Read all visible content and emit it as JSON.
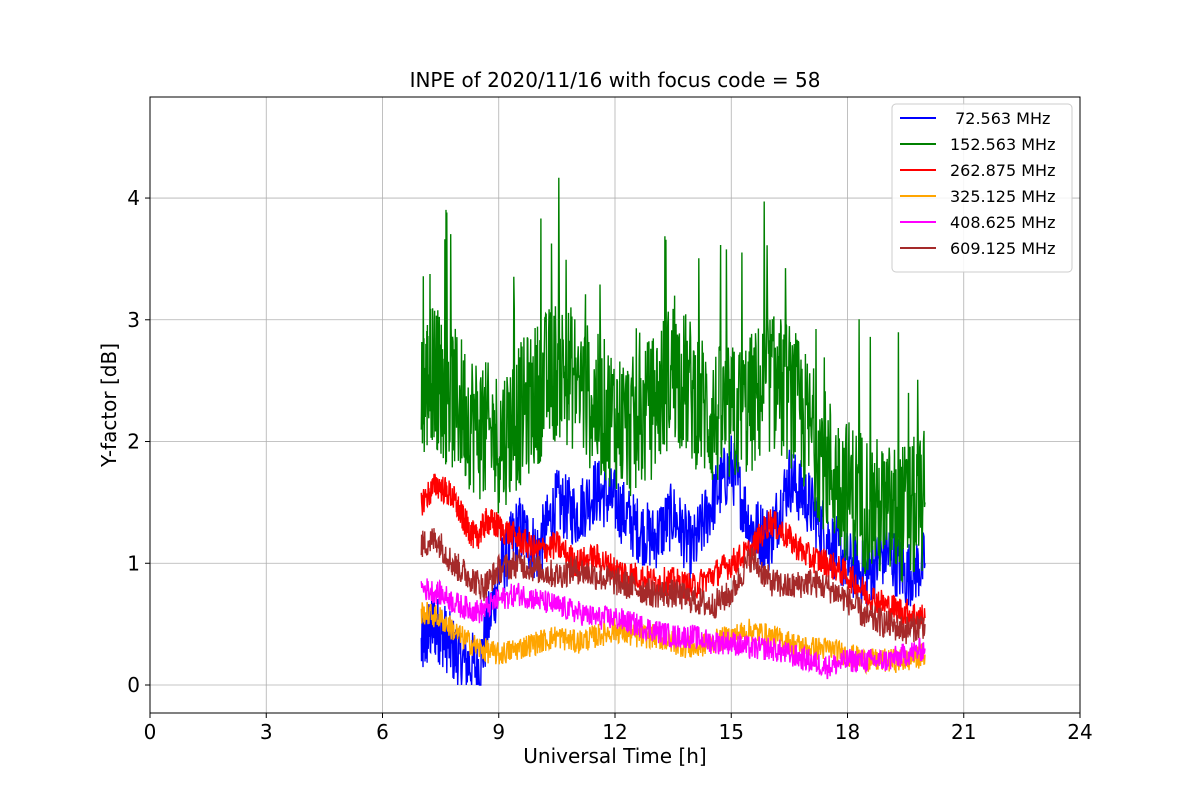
{
  "chart_data": {
    "type": "line",
    "title": "INPE of 2020/11/16 with focus code = 58",
    "xlabel": "Universal Time [h]",
    "ylabel": "Y-factor [dB]",
    "xlim": [
      0,
      24
    ],
    "ylim": [
      -0.23,
      4.83
    ],
    "xticks": [
      0,
      3,
      6,
      9,
      12,
      15,
      18,
      21,
      24
    ],
    "yticks": [
      0,
      1,
      2,
      3,
      4
    ],
    "grid": true,
    "legend_position": "top-right",
    "series": [
      {
        "name": " 72.563 MHz",
        "color": "#0000ff",
        "points": [
          [
            7.0,
            0.3
          ],
          [
            7.3,
            0.5
          ],
          [
            7.6,
            0.4
          ],
          [
            8.0,
            0.2
          ],
          [
            8.5,
            0.15
          ],
          [
            9.0,
            0.9
          ],
          [
            9.5,
            1.3
          ],
          [
            10.0,
            1.1
          ],
          [
            10.5,
            1.5
          ],
          [
            11.0,
            1.4
          ],
          [
            11.5,
            1.6
          ],
          [
            12.0,
            1.5
          ],
          [
            12.5,
            1.3
          ],
          [
            13.0,
            1.2
          ],
          [
            13.5,
            1.4
          ],
          [
            14.0,
            1.1
          ],
          [
            14.5,
            1.5
          ],
          [
            15.0,
            1.8
          ],
          [
            15.5,
            1.3
          ],
          [
            16.0,
            1.2
          ],
          [
            16.5,
            1.7
          ],
          [
            17.0,
            1.5
          ],
          [
            17.5,
            1.2
          ],
          [
            18.0,
            1.0
          ],
          [
            18.5,
            0.9
          ],
          [
            19.0,
            1.1
          ],
          [
            19.5,
            0.9
          ],
          [
            20.0,
            1.0
          ]
        ]
      },
      {
        "name": "152.563 MHz",
        "color": "#008000",
        "points": [
          [
            7.0,
            2.35
          ],
          [
            7.3,
            2.6
          ],
          [
            7.6,
            2.4
          ],
          [
            8.0,
            2.3
          ],
          [
            8.5,
            2.1
          ],
          [
            9.0,
            2.0
          ],
          [
            9.5,
            2.2
          ],
          [
            10.0,
            2.4
          ],
          [
            10.5,
            2.6
          ],
          [
            11.0,
            2.5
          ],
          [
            11.5,
            2.3
          ],
          [
            12.0,
            2.2
          ],
          [
            12.5,
            2.1
          ],
          [
            13.0,
            2.3
          ],
          [
            13.5,
            2.6
          ],
          [
            14.0,
            2.4
          ],
          [
            14.5,
            2.2
          ],
          [
            15.0,
            2.2
          ],
          [
            15.5,
            2.3
          ],
          [
            16.0,
            2.5
          ],
          [
            16.5,
            2.4
          ],
          [
            17.0,
            2.1
          ],
          [
            17.5,
            1.8
          ],
          [
            18.0,
            1.6
          ],
          [
            18.5,
            1.5
          ],
          [
            19.0,
            1.4
          ],
          [
            19.5,
            1.4
          ],
          [
            20.0,
            1.5
          ]
        ]
      },
      {
        "name": "262.875 MHz",
        "color": "#ff0000",
        "points": [
          [
            7.0,
            1.5
          ],
          [
            7.4,
            1.65
          ],
          [
            7.8,
            1.55
          ],
          [
            8.1,
            1.35
          ],
          [
            8.4,
            1.2
          ],
          [
            8.7,
            1.35
          ],
          [
            9.0,
            1.3
          ],
          [
            9.5,
            1.2
          ],
          [
            10.0,
            1.1
          ],
          [
            10.5,
            1.15
          ],
          [
            11.0,
            1.0
          ],
          [
            11.5,
            1.05
          ],
          [
            12.0,
            0.95
          ],
          [
            12.5,
            0.9
          ],
          [
            13.0,
            0.85
          ],
          [
            13.5,
            0.85
          ],
          [
            14.0,
            0.8
          ],
          [
            14.5,
            0.9
          ],
          [
            15.0,
            1.0
          ],
          [
            15.5,
            1.1
          ],
          [
            16.0,
            1.35
          ],
          [
            16.5,
            1.2
          ],
          [
            17.0,
            1.05
          ],
          [
            17.5,
            1.0
          ],
          [
            18.0,
            0.9
          ],
          [
            18.5,
            0.75
          ],
          [
            19.0,
            0.65
          ],
          [
            19.5,
            0.6
          ],
          [
            20.0,
            0.55
          ]
        ]
      },
      {
        "name": "325.125 MHz",
        "color": "#ffa500",
        "points": [
          [
            7.0,
            0.6
          ],
          [
            7.5,
            0.55
          ],
          [
            8.0,
            0.4
          ],
          [
            8.5,
            0.3
          ],
          [
            9.0,
            0.25
          ],
          [
            9.5,
            0.3
          ],
          [
            10.0,
            0.35
          ],
          [
            10.5,
            0.4
          ],
          [
            11.0,
            0.35
          ],
          [
            11.5,
            0.4
          ],
          [
            12.0,
            0.45
          ],
          [
            12.5,
            0.4
          ],
          [
            13.0,
            0.4
          ],
          [
            13.5,
            0.35
          ],
          [
            14.0,
            0.3
          ],
          [
            14.5,
            0.35
          ],
          [
            15.0,
            0.4
          ],
          [
            15.5,
            0.45
          ],
          [
            16.0,
            0.4
          ],
          [
            16.5,
            0.35
          ],
          [
            17.0,
            0.3
          ],
          [
            17.5,
            0.3
          ],
          [
            18.0,
            0.25
          ],
          [
            18.5,
            0.2
          ],
          [
            19.0,
            0.2
          ],
          [
            19.5,
            0.2
          ],
          [
            20.0,
            0.25
          ]
        ]
      },
      {
        "name": "408.625 MHz",
        "color": "#ff00ff",
        "points": [
          [
            7.0,
            0.8
          ],
          [
            7.5,
            0.75
          ],
          [
            8.0,
            0.65
          ],
          [
            8.5,
            0.6
          ],
          [
            9.0,
            0.7
          ],
          [
            9.5,
            0.75
          ],
          [
            10.0,
            0.7
          ],
          [
            10.5,
            0.65
          ],
          [
            11.0,
            0.6
          ],
          [
            11.5,
            0.55
          ],
          [
            12.0,
            0.55
          ],
          [
            12.5,
            0.5
          ],
          [
            13.0,
            0.45
          ],
          [
            13.5,
            0.4
          ],
          [
            14.0,
            0.4
          ],
          [
            14.5,
            0.35
          ],
          [
            15.0,
            0.35
          ],
          [
            15.5,
            0.3
          ],
          [
            16.0,
            0.3
          ],
          [
            16.5,
            0.25
          ],
          [
            17.0,
            0.2
          ],
          [
            17.5,
            0.15
          ],
          [
            18.0,
            0.2
          ],
          [
            18.5,
            0.2
          ],
          [
            19.0,
            0.2
          ],
          [
            19.5,
            0.25
          ],
          [
            20.0,
            0.3
          ]
        ]
      },
      {
        "name": "609.125 MHz",
        "color": "#a52a2a",
        "points": [
          [
            7.0,
            1.15
          ],
          [
            7.4,
            1.2
          ],
          [
            7.8,
            1.0
          ],
          [
            8.2,
            0.9
          ],
          [
            8.6,
            0.8
          ],
          [
            9.0,
            0.95
          ],
          [
            9.5,
            1.0
          ],
          [
            10.0,
            0.95
          ],
          [
            10.5,
            0.9
          ],
          [
            11.0,
            0.95
          ],
          [
            11.5,
            0.9
          ],
          [
            12.0,
            0.85
          ],
          [
            12.5,
            0.8
          ],
          [
            13.0,
            0.75
          ],
          [
            13.5,
            0.75
          ],
          [
            14.0,
            0.7
          ],
          [
            14.5,
            0.65
          ],
          [
            15.0,
            0.75
          ],
          [
            15.5,
            1.05
          ],
          [
            16.0,
            0.85
          ],
          [
            16.5,
            0.8
          ],
          [
            17.0,
            0.85
          ],
          [
            17.5,
            0.8
          ],
          [
            18.0,
            0.7
          ],
          [
            18.5,
            0.55
          ],
          [
            19.0,
            0.5
          ],
          [
            19.5,
            0.45
          ],
          [
            20.0,
            0.5
          ]
        ]
      }
    ]
  }
}
